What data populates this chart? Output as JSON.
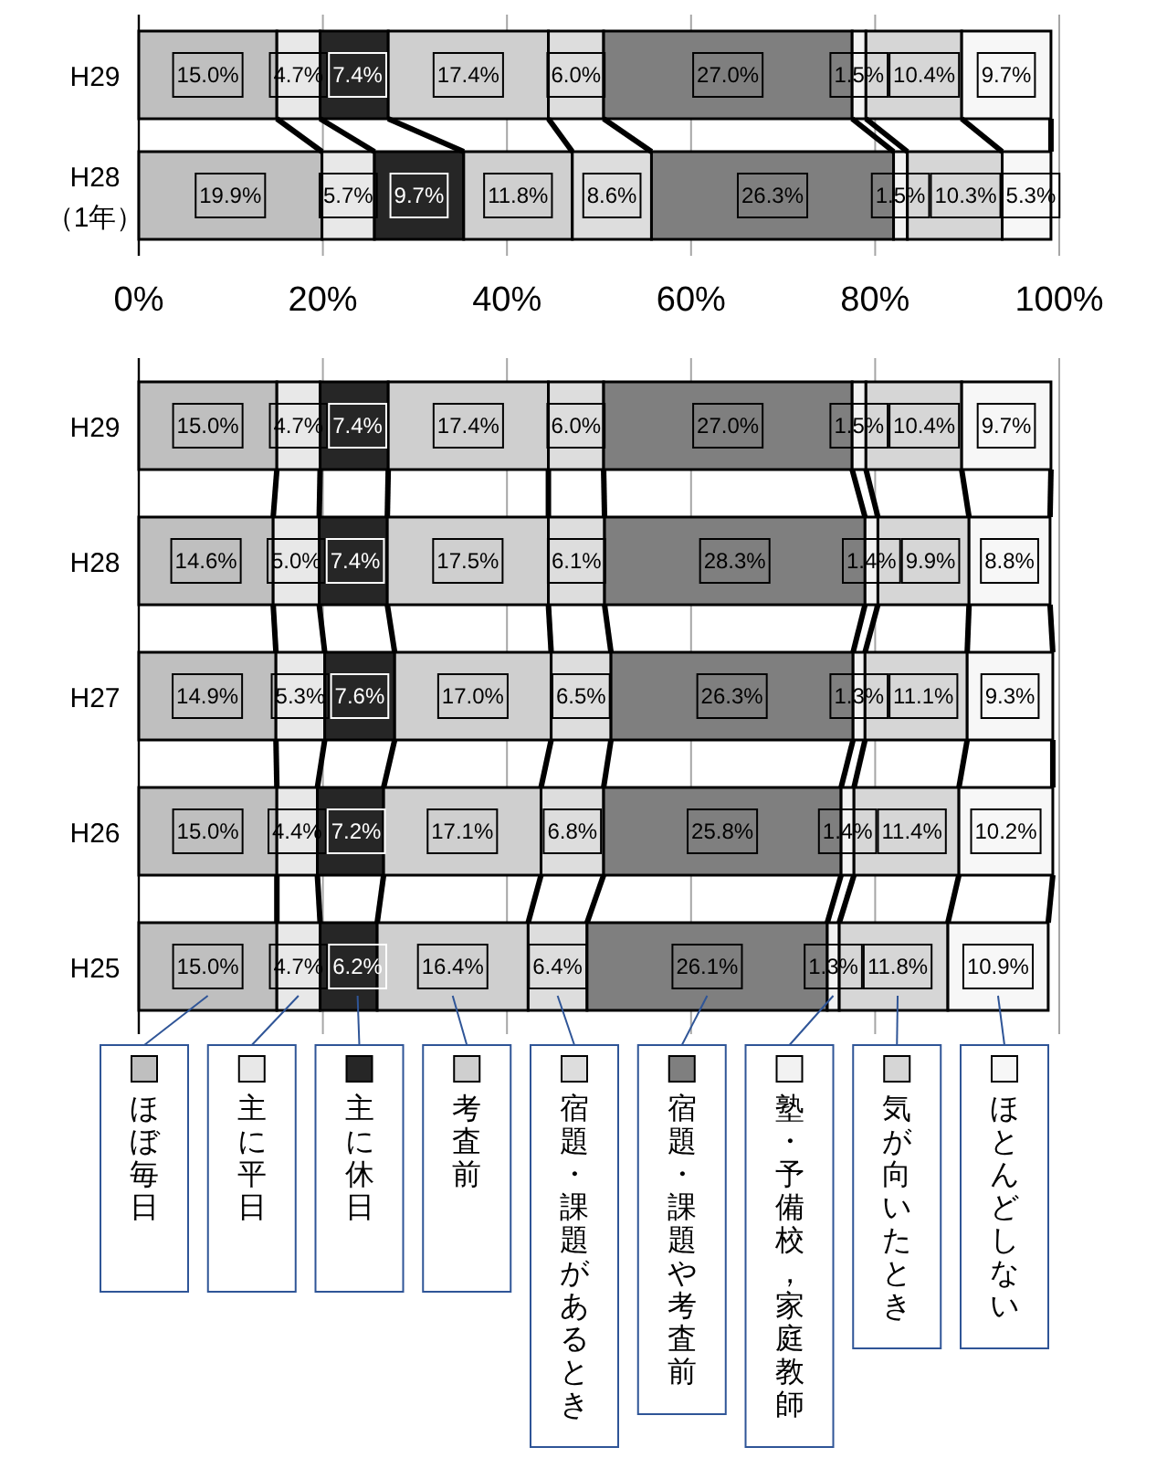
{
  "chart_data": [
    {
      "type": "bar",
      "orientation": "horizontal",
      "stacked": true,
      "categories": [
        "H29",
        "H28\n（1年）"
      ],
      "xlim": [
        0,
        100
      ],
      "xticks": [
        {
          "value": 0,
          "label": "0%"
        },
        {
          "value": 20,
          "label": "20%"
        },
        {
          "value": 40,
          "label": "40%"
        },
        {
          "value": 60,
          "label": "60%"
        },
        {
          "value": 80,
          "label": "80%"
        },
        {
          "value": 100,
          "label": "100%"
        }
      ],
      "grid": "x",
      "series": [
        {
          "color": "#bfbfbf",
          "values": [
            15.0,
            19.9
          ],
          "value_labels": [
            "15.0%",
            "19.9%"
          ]
        },
        {
          "color": "#e8e8e8",
          "values": [
            4.7,
            5.7
          ],
          "value_labels": [
            "4.7%",
            "5.7%"
          ]
        },
        {
          "color": "#262626",
          "values": [
            7.4,
            9.7
          ],
          "value_labels": [
            "7.4%",
            "9.7%"
          ]
        },
        {
          "color": "#cfcfcf",
          "values": [
            17.4,
            11.8
          ],
          "value_labels": [
            "17.4%",
            "11.8%"
          ]
        },
        {
          "color": "#dddddd",
          "values": [
            6.0,
            8.6
          ],
          "value_labels": [
            "6.0%",
            "8.6%"
          ]
        },
        {
          "color": "#7f7f7f",
          "values": [
            27.0,
            26.3
          ],
          "value_labels": [
            "27.0%",
            "26.3%"
          ]
        },
        {
          "color": "#f2f2f2",
          "values": [
            1.5,
            1.5
          ],
          "value_labels": [
            "1.5%",
            "1.5%"
          ]
        },
        {
          "color": "#d6d6d6",
          "values": [
            10.4,
            10.3
          ],
          "value_labels": [
            "10.4%",
            "10.3%"
          ]
        },
        {
          "color": "#f7f7f7",
          "values": [
            9.7,
            5.3
          ],
          "value_labels": [
            "9.7%",
            "5.3%"
          ]
        }
      ]
    },
    {
      "type": "bar",
      "orientation": "horizontal",
      "stacked": true,
      "categories": [
        "H29",
        "H28",
        "H27",
        "H26",
        "H25"
      ],
      "xlim": [
        0,
        100
      ],
      "xticks": [
        0,
        20,
        40,
        60,
        80,
        100
      ],
      "grid": "x",
      "tick_labels": "y",
      "legend": "bottom",
      "series": [
        {
          "name": "ほぼ毎日",
          "color": "#bfbfbf",
          "values": [
            15.0,
            14.6,
            14.9,
            15.0,
            15.0
          ],
          "value_labels": [
            "15.0%",
            "14.6%",
            "14.9%",
            "15.0%",
            "15.0%"
          ]
        },
        {
          "name": "主に平日",
          "color": "#e8e8e8",
          "values": [
            4.7,
            5.0,
            5.3,
            4.4,
            4.7
          ],
          "value_labels": [
            "4.7%",
            "5.0%",
            "5.3%",
            "4.4%",
            "4.7%"
          ]
        },
        {
          "name": "主に休日",
          "color": "#262626",
          "values": [
            7.4,
            7.4,
            7.6,
            7.2,
            6.2
          ],
          "value_labels": [
            "7.4%",
            "7.4%",
            "7.6%",
            "7.2%",
            "6.2%"
          ]
        },
        {
          "name": "考査前",
          "color": "#cfcfcf",
          "values": [
            17.4,
            17.5,
            17.0,
            17.1,
            16.4
          ],
          "value_labels": [
            "17.4%",
            "17.5%",
            "17.0%",
            "17.1%",
            "16.4%"
          ]
        },
        {
          "name": "宿題・課題があるとき",
          "color": "#dddddd",
          "values": [
            6.0,
            6.1,
            6.5,
            6.8,
            6.4
          ],
          "value_labels": [
            "6.0%",
            "6.1%",
            "6.5%",
            "6.8%",
            "6.4%"
          ]
        },
        {
          "name": "宿題・課題や考査前",
          "color": "#7f7f7f",
          "values": [
            27.0,
            28.3,
            26.3,
            25.8,
            26.1
          ],
          "value_labels": [
            "27.0%",
            "28.3%",
            "26.3%",
            "25.8%",
            "26.1%"
          ]
        },
        {
          "name": "塾・予備校，家庭教師",
          "color": "#f2f2f2",
          "values": [
            1.5,
            1.4,
            1.3,
            1.4,
            1.3
          ],
          "value_labels": [
            "1.5%",
            "1.4%",
            "1.3%",
            "1.4%",
            "1.3%"
          ]
        },
        {
          "name": "気が向いたとき",
          "color": "#d6d6d6",
          "values": [
            10.4,
            9.9,
            11.1,
            11.4,
            11.8
          ],
          "value_labels": [
            "10.4%",
            "9.9%",
            "11.1%",
            "11.4%",
            "11.8%"
          ]
        },
        {
          "name": "ほとんどしない",
          "color": "#f7f7f7",
          "values": [
            9.7,
            8.8,
            9.3,
            10.2,
            10.9
          ],
          "value_labels": [
            "9.7%",
            "8.8%",
            "9.3%",
            "10.2%",
            "10.9%"
          ]
        }
      ]
    }
  ]
}
